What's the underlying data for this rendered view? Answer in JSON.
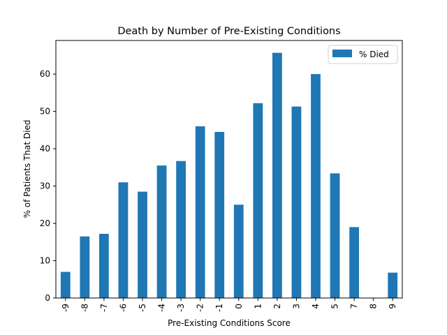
{
  "chart_data": {
    "type": "bar",
    "title": "Death by Number of Pre-Existing Conditions",
    "xlabel": "Pre-Existing Conditions Score",
    "ylabel": "% of Patients That Died",
    "categories": [
      "-9",
      "-8",
      "-7",
      "-6",
      "-5",
      "-4",
      "-3",
      "-2",
      "-1",
      "0",
      "1",
      "2",
      "3",
      "4",
      "5",
      "7",
      "8",
      "9"
    ],
    "series": [
      {
        "name": "% Died",
        "color": "#1f77b4",
        "values": [
          7.0,
          16.5,
          17.2,
          31.0,
          28.5,
          35.5,
          36.7,
          46.0,
          44.5,
          25.0,
          52.2,
          65.7,
          51.3,
          60.0,
          33.4,
          19.0,
          0.0,
          6.8
        ]
      }
    ],
    "ylim": [
      0,
      69
    ],
    "yticks": [
      0,
      10,
      20,
      30,
      40,
      50,
      60
    ],
    "legend": {
      "placement": "top-right",
      "entries": [
        "% Died"
      ]
    },
    "grid": false
  }
}
